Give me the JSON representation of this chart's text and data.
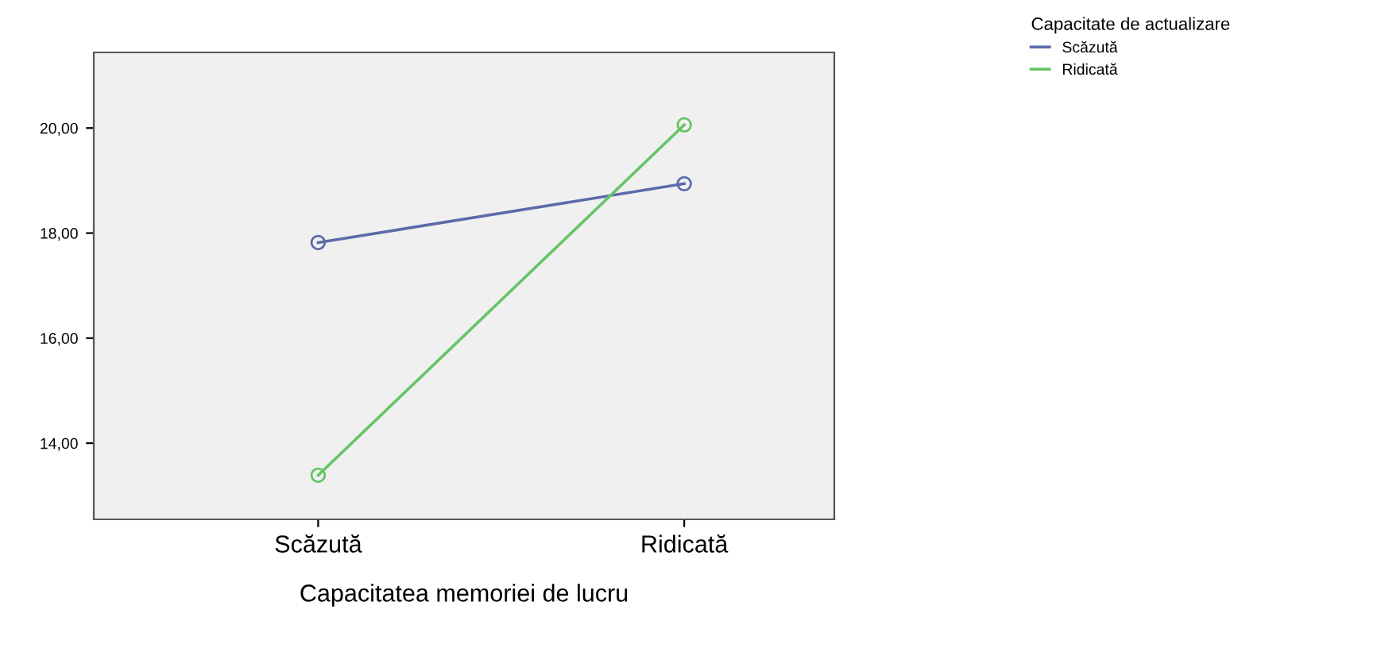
{
  "chart_data": {
    "type": "line",
    "xlabel": "Capacitatea memoriei de lucru",
    "legend_title": "Capacitate de actualizare",
    "legend": "top right",
    "marker": "circle",
    "line_style": "solid",
    "grid": false,
    "categories": [
      "Scăzută",
      "Ridicată"
    ],
    "ylim": [
      12.55,
      21.44
    ],
    "yticks": [
      {
        "value": 14,
        "label": "14,00"
      },
      {
        "value": 16,
        "label": "16,00"
      },
      {
        "value": 18,
        "label": "18,00"
      },
      {
        "value": 20,
        "label": "20,00"
      }
    ],
    "series": [
      {
        "name": "Scăzută",
        "color": "#5c6aaa",
        "values": [
          17.82,
          18.94
        ]
      },
      {
        "name": "Ridicată",
        "color": "#66c466",
        "values": [
          13.39,
          20.06
        ]
      }
    ]
  }
}
